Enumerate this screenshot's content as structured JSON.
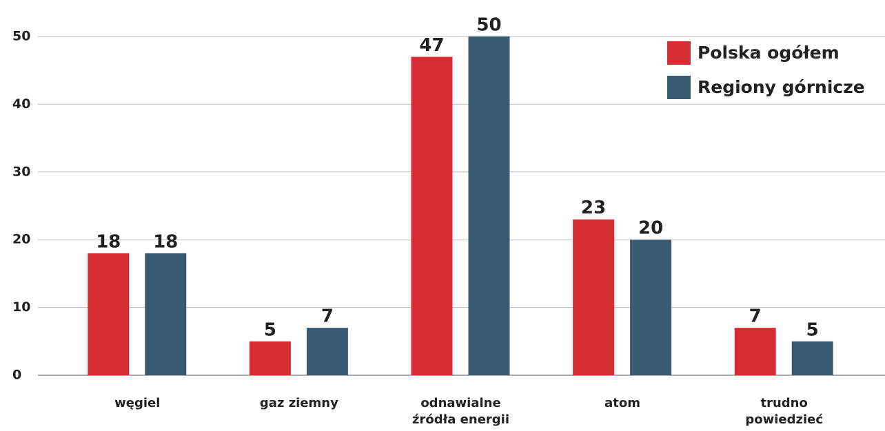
{
  "chart_data": {
    "type": "bar",
    "categories": [
      "węgiel",
      "gaz ziemny",
      "odnawialne\nźródła energii",
      "atom",
      "trudno\npowiedzieć"
    ],
    "series": [
      {
        "name": "Polska ogółem",
        "color": "#d62d35",
        "values": [
          18,
          5,
          47,
          23,
          7
        ]
      },
      {
        "name": "Regiony górnicze",
        "color": "#3a5a72",
        "values": [
          18,
          7,
          50,
          20,
          5
        ]
      }
    ],
    "ylim": [
      0,
      50
    ],
    "yticks": [
      0,
      10,
      20,
      30,
      40,
      50
    ],
    "grid": true,
    "legend": "top-right"
  }
}
